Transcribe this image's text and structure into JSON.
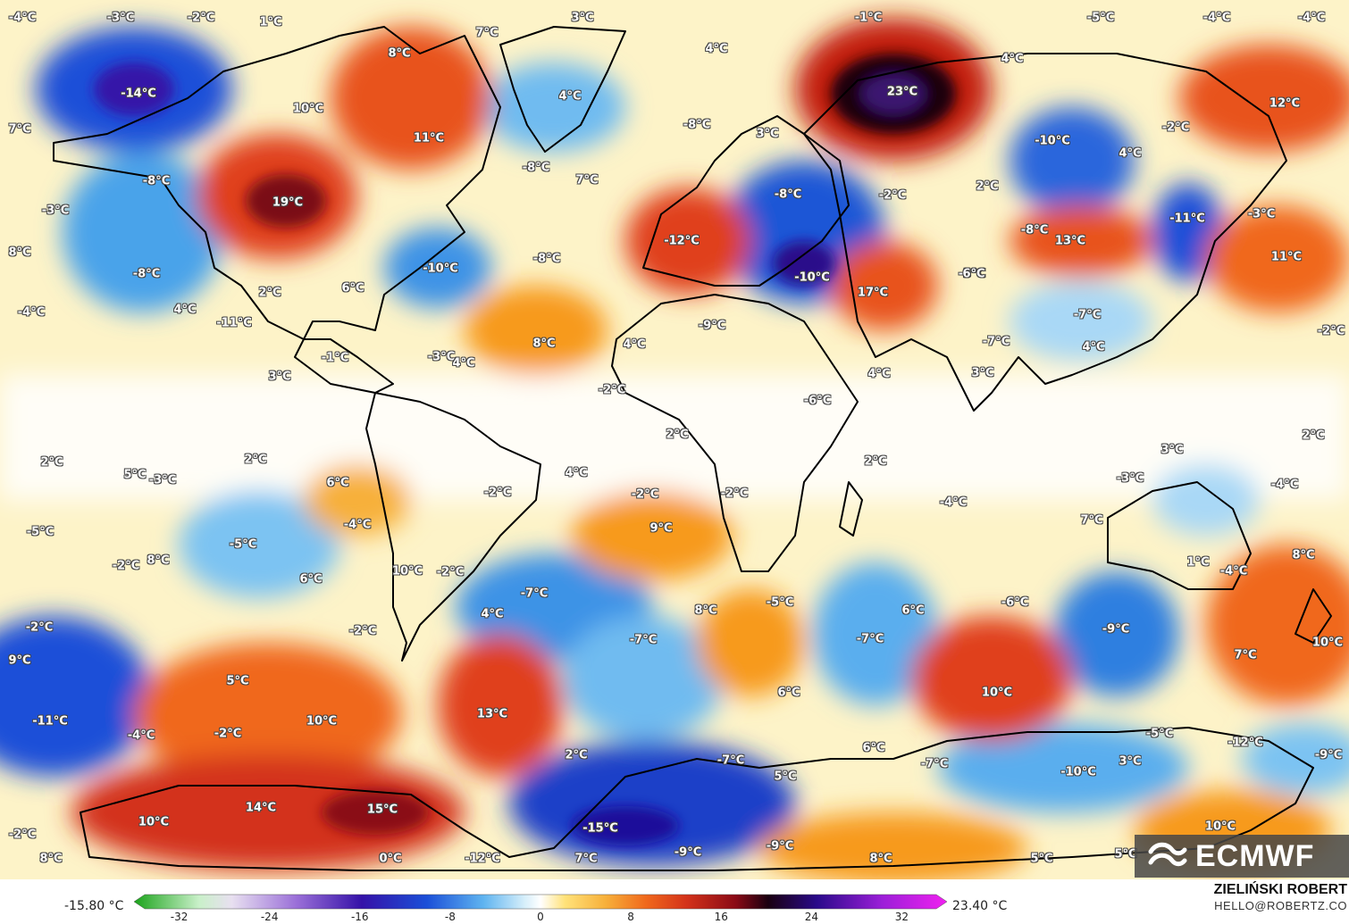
{
  "map": {
    "scale_colors": {
      "cold_extreme": "#1aa31a",
      "cold_deep": "#2a0a8a",
      "cold": "#1b4fd8",
      "cool": "#5fb4f0",
      "mild_cool": "#cfe9f8",
      "neutral": "#ffffff",
      "mild_warm": "#ffe27a",
      "warm": "#f79a1e",
      "hot": "#e0401a",
      "very_hot": "#8a0a16",
      "extreme": "#1a0010"
    },
    "labels": [
      "-4°C",
      "-3°C",
      "-2°C",
      "1°C",
      "7°C",
      "3°C",
      "-1°C",
      "-5°C",
      "-4°C",
      "-4°C",
      "-14°C",
      "8°C",
      "10°C",
      "11°C",
      "4°C",
      "4°C",
      "-8°C",
      "23°C",
      "4°C",
      "12°C",
      "7°C",
      "-8°C",
      "3°C",
      "-10°C",
      "-2°C",
      "4°C",
      "19°C",
      "-8°C",
      "7°C",
      "-8°C",
      "-2°C",
      "2°C",
      "-3°C",
      "-11°C",
      "-3°C",
      "8°C",
      "-12°C",
      "-8°C",
      "13°C",
      "-8°C",
      "11°C",
      "-8°C",
      "-3°C",
      "-10°C",
      "6°C",
      "2°C",
      "6°C",
      "-10°C",
      "-4°C",
      "4°C",
      "-11°C",
      "17°C",
      "-7°C",
      "8°C",
      "-9°C",
      "4°C",
      "-7°C",
      "4°C",
      "-2°C",
      "3°C",
      "-1°C",
      "-3°C",
      "4°C",
      "-2°C",
      "4°C",
      "3°C",
      "-6°C",
      "2°C",
      "2°C",
      "3°C",
      "2°C",
      "5°C",
      "-3°C",
      "2°C",
      "6°C",
      "4°C",
      "-2°C",
      "-2°C",
      "-2°C",
      "2°C",
      "-3°C",
      "-4°C",
      "-5°C",
      "-5°C",
      "-4°C",
      "9°C",
      "-4°C",
      "7°C",
      "-2°C",
      "8°C",
      "6°C",
      "10°C",
      "-2°C",
      "1°C",
      "-4°C",
      "8°C",
      "-7°C",
      "8°C",
      "-5°C",
      "6°C",
      "-6°C",
      "-2°C",
      "4°C",
      "-2°C",
      "-9°C",
      "-7°C",
      "-7°C",
      "9°C",
      "7°C",
      "10°C",
      "5°C",
      "6°C",
      "10°C",
      "-11°C",
      "10°C",
      "13°C",
      "-4°C",
      "-2°C",
      "2°C",
      "-5°C",
      "-12°C",
      "-7°C",
      "6°C",
      "-7°C",
      "3°C",
      "-9°C",
      "5°C",
      "-10°C",
      "14°C",
      "15°C",
      "10°C",
      "-15°C",
      "-2°C",
      "10°C",
      "-9°C",
      "-9°C",
      "8°C",
      "0°C",
      "-12°C",
      "7°C",
      "8°C",
      "5°C",
      "5°C"
    ]
  },
  "logo": {
    "text": "ECMWF"
  },
  "legend": {
    "min": "-15.80 °C",
    "max": "23.40 °C",
    "ticks": [
      "-32",
      "-24",
      "-16",
      "-8",
      "0",
      "8",
      "16",
      "24",
      "32"
    ]
  },
  "credit": {
    "name": "ZIELIŃSKI ROBERT",
    "email": "HELLO@ROBERTZ.CO"
  }
}
